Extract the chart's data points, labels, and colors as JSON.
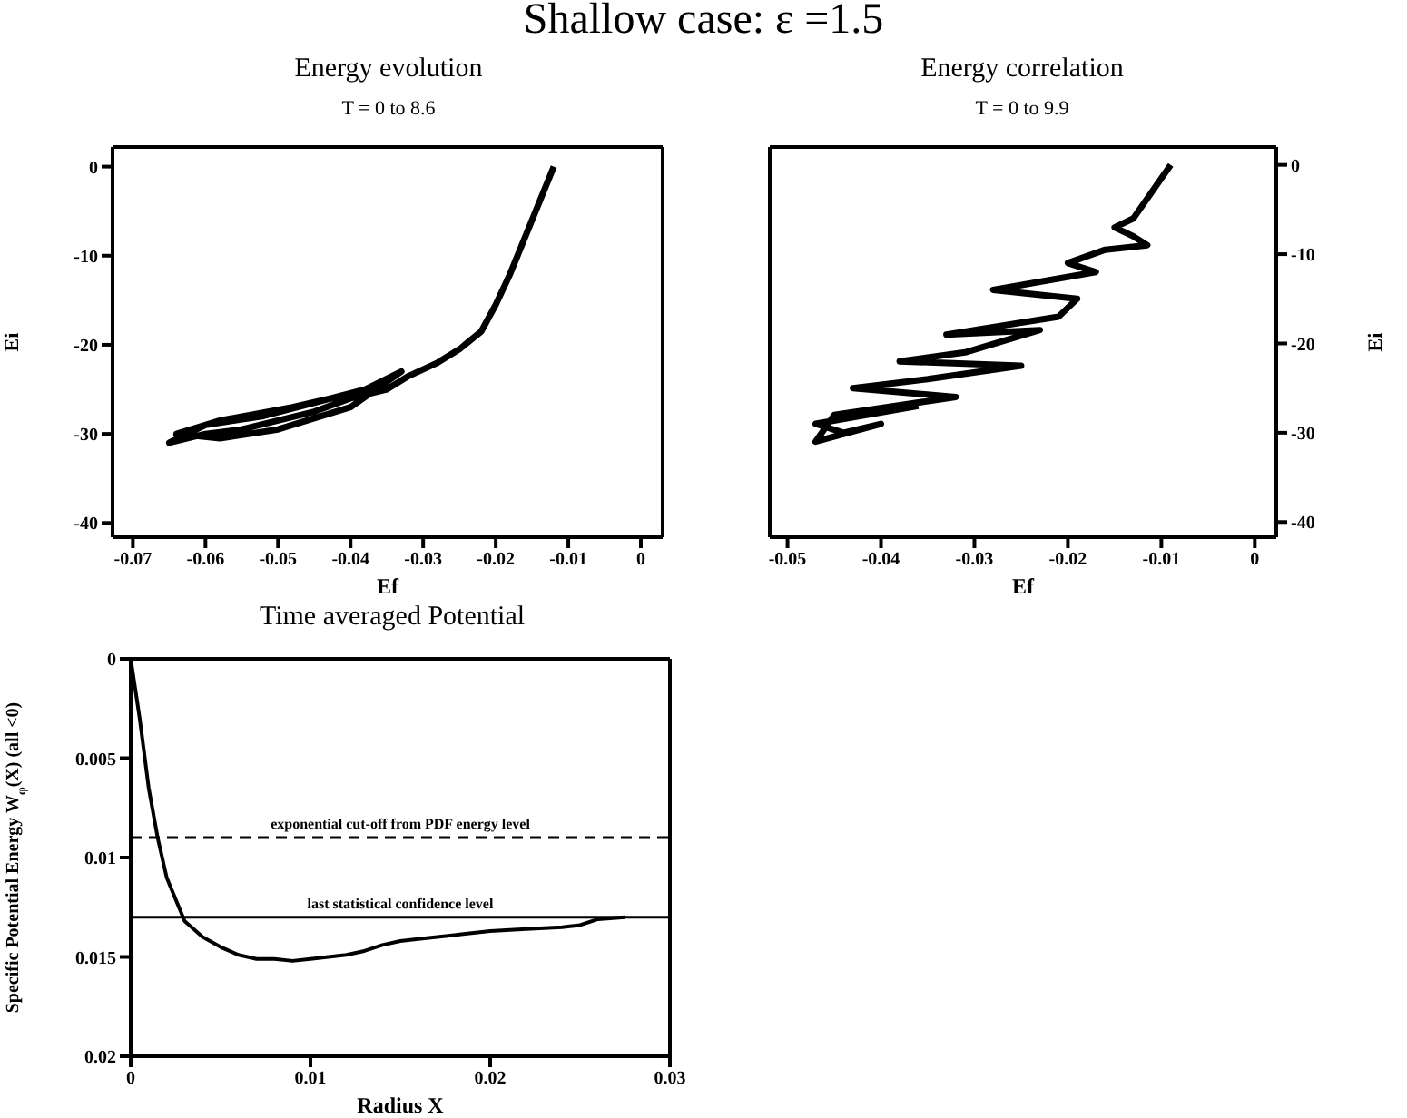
{
  "chart_data": [
    {
      "type": "line",
      "title": "Energy evolution",
      "subtitle": "T = 0 to 8.6",
      "xlabel": "Ef",
      "ylabel": "Ei",
      "annotations": [
        "Shallow case: ε =1.5"
      ],
      "xlim": [
        -0.0728,
        0.003
      ],
      "xticks": [
        -0.07,
        -0.06,
        -0.05,
        -0.04,
        -0.03,
        -0.02,
        -0.01,
        0
      ],
      "ylim": [
        -41.6,
        2.2
      ],
      "yticks": [
        -40,
        -30,
        -20,
        -10,
        0
      ],
      "series": [
        {
          "color": "#000000",
          "x": [
            -0.012,
            -0.014,
            -0.016,
            -0.018,
            -0.02,
            -0.022,
            -0.025,
            -0.028,
            -0.032,
            -0.035,
            -0.04,
            -0.045,
            -0.05,
            -0.055,
            -0.06,
            -0.065,
            -0.06,
            -0.052,
            -0.045,
            -0.038,
            -0.033,
            -0.04,
            -0.05,
            -0.058,
            -0.064,
            -0.058,
            -0.048,
            -0.04
          ],
          "values": [
            0,
            -4,
            -8,
            -12,
            -15.5,
            -18.5,
            -20.5,
            -22,
            -23.5,
            -25,
            -26,
            -27.5,
            -28.5,
            -29.5,
            -30,
            -31,
            -29,
            -28,
            -26.5,
            -25,
            -23,
            -27,
            -29.5,
            -30.5,
            -30,
            -28.5,
            -27,
            -25.5
          ]
        }
      ]
    },
    {
      "type": "line",
      "title": "Energy correlation",
      "subtitle": "T = 0 to 9.9",
      "xlabel": "Ef",
      "y2label": "Ei",
      "xlim": [
        -0.0519,
        0.0023
      ],
      "xticks": [
        -0.05,
        -0.04,
        -0.03,
        -0.02,
        -0.01,
        0
      ],
      "y2lim": [
        -41.7,
        2
      ],
      "y2ticks": [
        -40,
        -30,
        -20,
        -10,
        0
      ],
      "series": [
        {
          "color": "#000000",
          "axis": "y2",
          "x": [
            -0.009,
            -0.011,
            -0.013,
            -0.015,
            -0.013,
            -0.0115,
            -0.016,
            -0.02,
            -0.017,
            -0.028,
            -0.019,
            -0.021,
            -0.033,
            -0.023,
            -0.031,
            -0.038,
            -0.025,
            -0.035,
            -0.043,
            -0.032,
            -0.045,
            -0.047,
            -0.04,
            -0.044,
            -0.047,
            -0.036
          ],
          "values": [
            0,
            -3,
            -6,
            -7,
            -8,
            -9,
            -9.5,
            -11,
            -12,
            -14,
            -15,
            -17,
            -19,
            -18.5,
            -21,
            -22,
            -22.5,
            -24,
            -25,
            -26,
            -28,
            -31,
            -29,
            -30,
            -29,
            -27
          ]
        }
      ]
    },
    {
      "type": "line",
      "title": "Time averaged Potential",
      "xlabel": "Radius X",
      "ylabel": "Specific Potential Energy  W$_{φ}$(X) (all <0)",
      "xlim": [
        0,
        0.03
      ],
      "xticks": [
        0,
        0.01,
        0.02,
        0.03
      ],
      "ylim": [
        0.02,
        0
      ],
      "yticks": [
        0,
        0.005,
        0.01,
        0.015,
        0.02
      ],
      "ref_lines": [
        {
          "axis": "y",
          "value": 0.009,
          "label": "exponential cut-off from PDF energy level",
          "line_style": "dashed",
          "color": "#000000"
        },
        {
          "axis": "y",
          "value": 0.013,
          "label": "last statistical confidence level",
          "line_style": "solid",
          "color": "#000000"
        }
      ],
      "series": [
        {
          "color": "#000000",
          "x": [
            0,
            0.0005,
            0.001,
            0.0015,
            0.002,
            0.003,
            0.004,
            0.005,
            0.006,
            0.007,
            0.008,
            0.009,
            0.01,
            0.011,
            0.012,
            0.013,
            0.014,
            0.015,
            0.016,
            0.018,
            0.02,
            0.022,
            0.024,
            0.025,
            0.026,
            0.0275
          ],
          "values": [
            0,
            0.003,
            0.0065,
            0.009,
            0.011,
            0.0132,
            0.014,
            0.0145,
            0.0149,
            0.0151,
            0.0151,
            0.0152,
            0.0151,
            0.015,
            0.0149,
            0.0147,
            0.0144,
            0.0142,
            0.0141,
            0.0139,
            0.0137,
            0.0136,
            0.0135,
            0.0134,
            0.0131,
            0.013
          ]
        }
      ]
    }
  ]
}
